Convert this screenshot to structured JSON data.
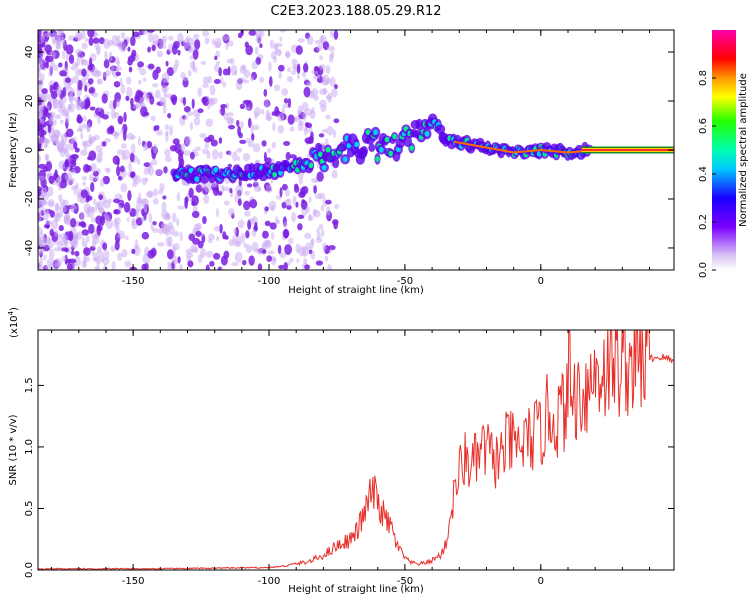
{
  "title": "C2E3.2023.188.05.29.R12",
  "colors": {
    "snr_line": "#e8302a",
    "spectrogram_noise": "#8a2be2",
    "trace_core": "#ff2d2d",
    "trace_edge": "#00cc66"
  },
  "chart_data": [
    {
      "type": "heatmap",
      "xlabel": "Height of straight line (km)",
      "ylabel": "Frequency (Hz)",
      "xlim": [
        -185,
        49
      ],
      "ylim": [
        -49,
        49
      ],
      "xticks": [
        "-150",
        "-100",
        "-50",
        "0"
      ],
      "yticks": [
        "-40",
        "-20",
        "0",
        "20",
        "40"
      ],
      "colorbar": {
        "label": "Normalized spectral amplitude",
        "range": [
          0.0,
          1.0
        ],
        "ticks": [
          "0.0",
          "0.2",
          "0.4",
          "0.6",
          "0.8"
        ]
      },
      "trace": {
        "height_km": [
          -135,
          -120,
          -105,
          -95,
          -85,
          -80,
          -70,
          -60,
          -50,
          -45,
          -40,
          -35,
          -30,
          -20,
          -10,
          0,
          10,
          20,
          30,
          49
        ],
        "frequency_hz": [
          -10,
          -10,
          -9,
          -8,
          -6,
          -3,
          0,
          2,
          4,
          7,
          14,
          4,
          3,
          1,
          -1,
          0,
          -1,
          0,
          0,
          0
        ]
      }
    },
    {
      "type": "line",
      "xlabel": "Height of straight line (km)",
      "ylabel": "SNR (10 * v/v)",
      "y_multiplier": "(x10",
      "y_multiplier_exponent": "4",
      "xlim": [
        -185,
        49
      ],
      "ylim": [
        0,
        1.95
      ],
      "xticks": [
        "-150",
        "-100",
        "-50",
        "0"
      ],
      "yticks": [
        "0.0",
        "0.5",
        "1.0",
        "1.5"
      ],
      "series": [
        {
          "height_km": [
            -185,
            -140,
            -100,
            -95,
            -90,
            -85,
            -80,
            -75,
            -70,
            -68,
            -65,
            -62,
            -60,
            -57,
            -55,
            -53,
            -50,
            -48,
            -45,
            -42,
            -40,
            -37,
            -35,
            -32,
            -30,
            -28,
            -25,
            -22,
            -20,
            -18,
            -15,
            -12,
            -10,
            -8,
            -5,
            -2,
            0,
            3,
            5,
            8,
            10,
            12,
            15,
            18,
            20,
            25,
            30,
            35,
            40,
            45,
            49
          ],
          "snr": [
            0.01,
            0.01,
            0.02,
            0.03,
            0.05,
            0.07,
            0.12,
            0.2,
            0.25,
            0.3,
            0.45,
            0.65,
            0.55,
            0.4,
            0.35,
            0.2,
            0.1,
            0.06,
            0.05,
            0.06,
            0.08,
            0.12,
            0.2,
            0.6,
            0.8,
            0.9,
            0.85,
            0.95,
            1.0,
            0.9,
            0.9,
            1.05,
            1.0,
            1.0,
            1.05,
            1.1,
            1.1,
            1.3,
            1.2,
            1.3,
            1.35,
            1.4,
            1.45,
            1.5,
            1.6,
            1.65,
            1.68,
            1.7,
            1.72,
            1.73,
            1.7
          ]
        }
      ]
    }
  ]
}
